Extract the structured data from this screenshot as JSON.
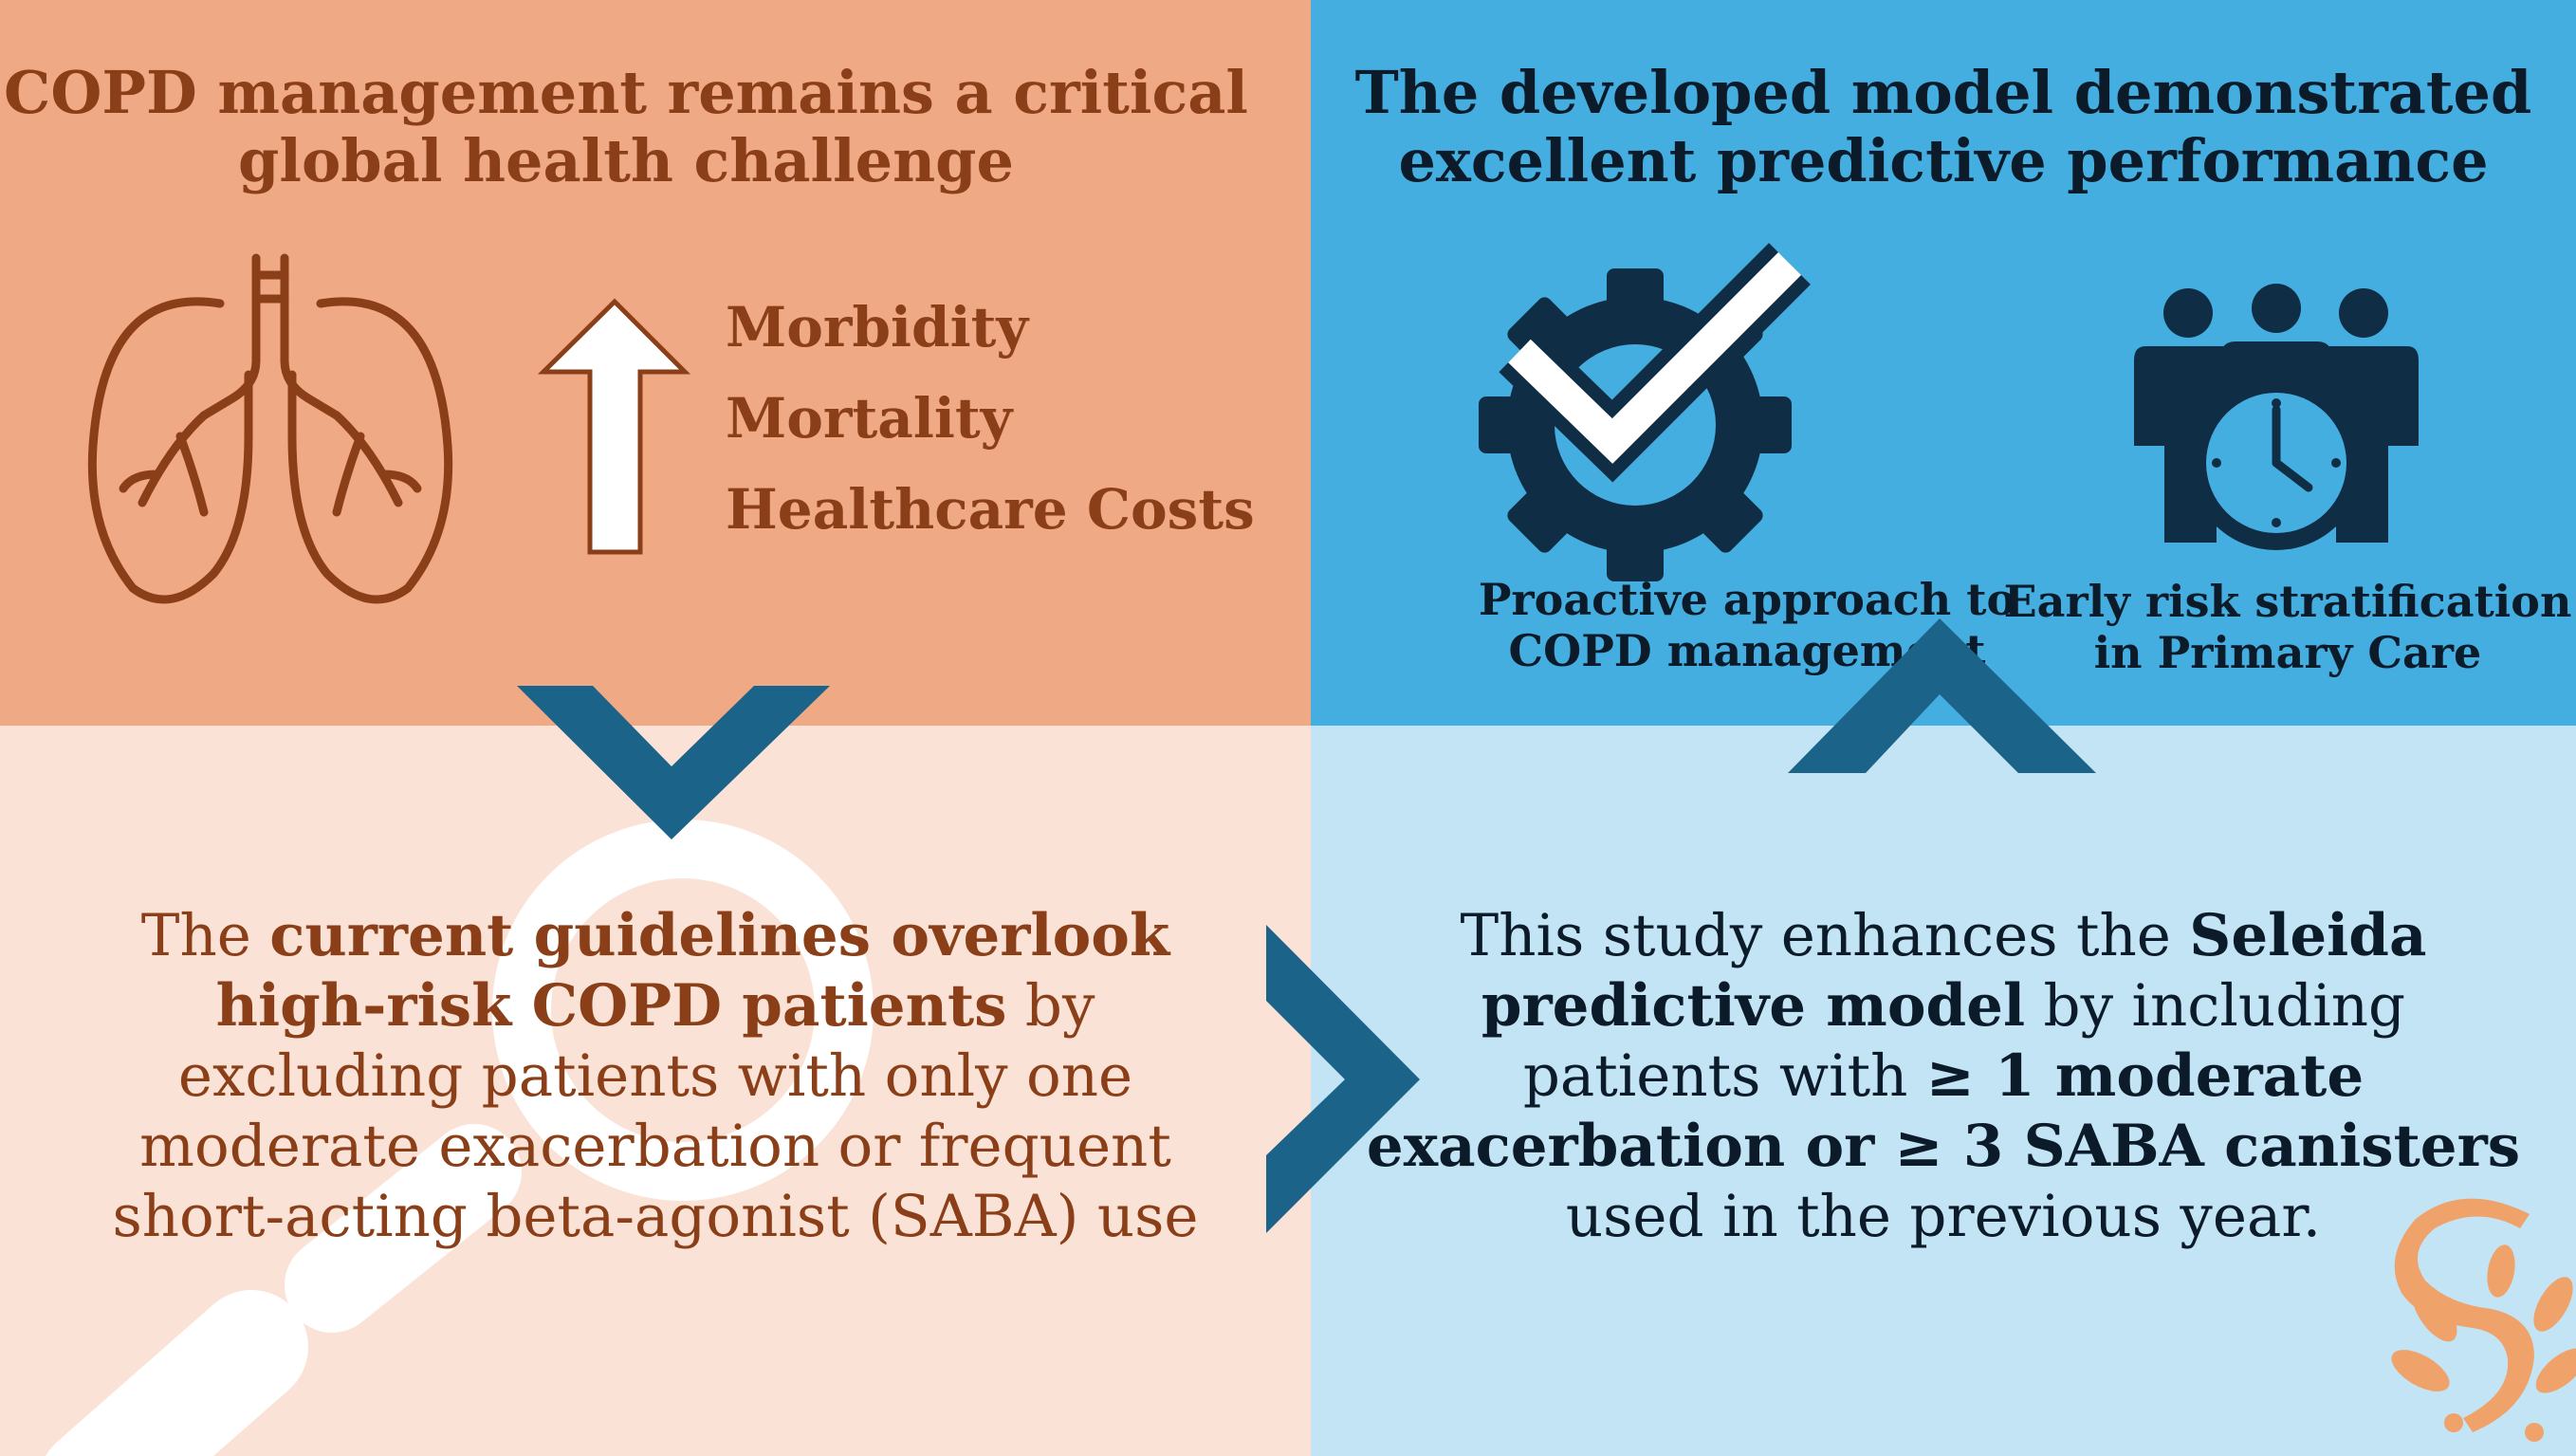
{
  "top_left": {
    "heading_line1": "COPD management remains a critical",
    "heading_line2": "global health challenge",
    "up_arrow_icon": "up-arrow-icon",
    "lungs_icon": "lungs-icon",
    "risks": [
      "Morbidity",
      "Mortality",
      "Healthcare Costs"
    ]
  },
  "top_right": {
    "heading_line1": "The developed model demonstrated",
    "heading_line2": "excellent predictive performance",
    "items": [
      {
        "icon": "gear-check-icon",
        "line1": "Proactive approach to",
        "line2": "COPD management"
      },
      {
        "icon": "people-clock-icon",
        "line1": "Early risk stratification",
        "line2": "in Primary Care"
      }
    ]
  },
  "bottom_left": {
    "icon": "magnifying-glass-icon",
    "t1": "The ",
    "b1": "current guidelines overlook",
    "b2": "high-risk COPD patients",
    "t2": " by",
    "l3": "excluding patients with only one",
    "l4": "moderate exacerbation or frequent",
    "l5": "short-acting beta-agonist (SABA) use"
  },
  "bottom_right": {
    "icon": "seleida-logo-icon",
    "t1": "This study enhances the ",
    "b1": "Seleida",
    "b2": "predictive model",
    "t2": " by including",
    "t3": "patients with ",
    "b3": "≥ 1 moderate",
    "b4": "exacerbation or ≥ 3 SABA canisters",
    "l5": "used in the previous year."
  },
  "connectors": [
    "chevron-down-icon",
    "chevron-right-icon",
    "chevron-up-icon"
  ],
  "colors": {
    "orange": "#f0a985",
    "peach": "#fae3d6",
    "blue": "#45aee0",
    "light_blue": "#c3e4f5",
    "brown": "#8b3f19",
    "navy": "#0c1b29",
    "dark_blue": "#1b6388"
  }
}
